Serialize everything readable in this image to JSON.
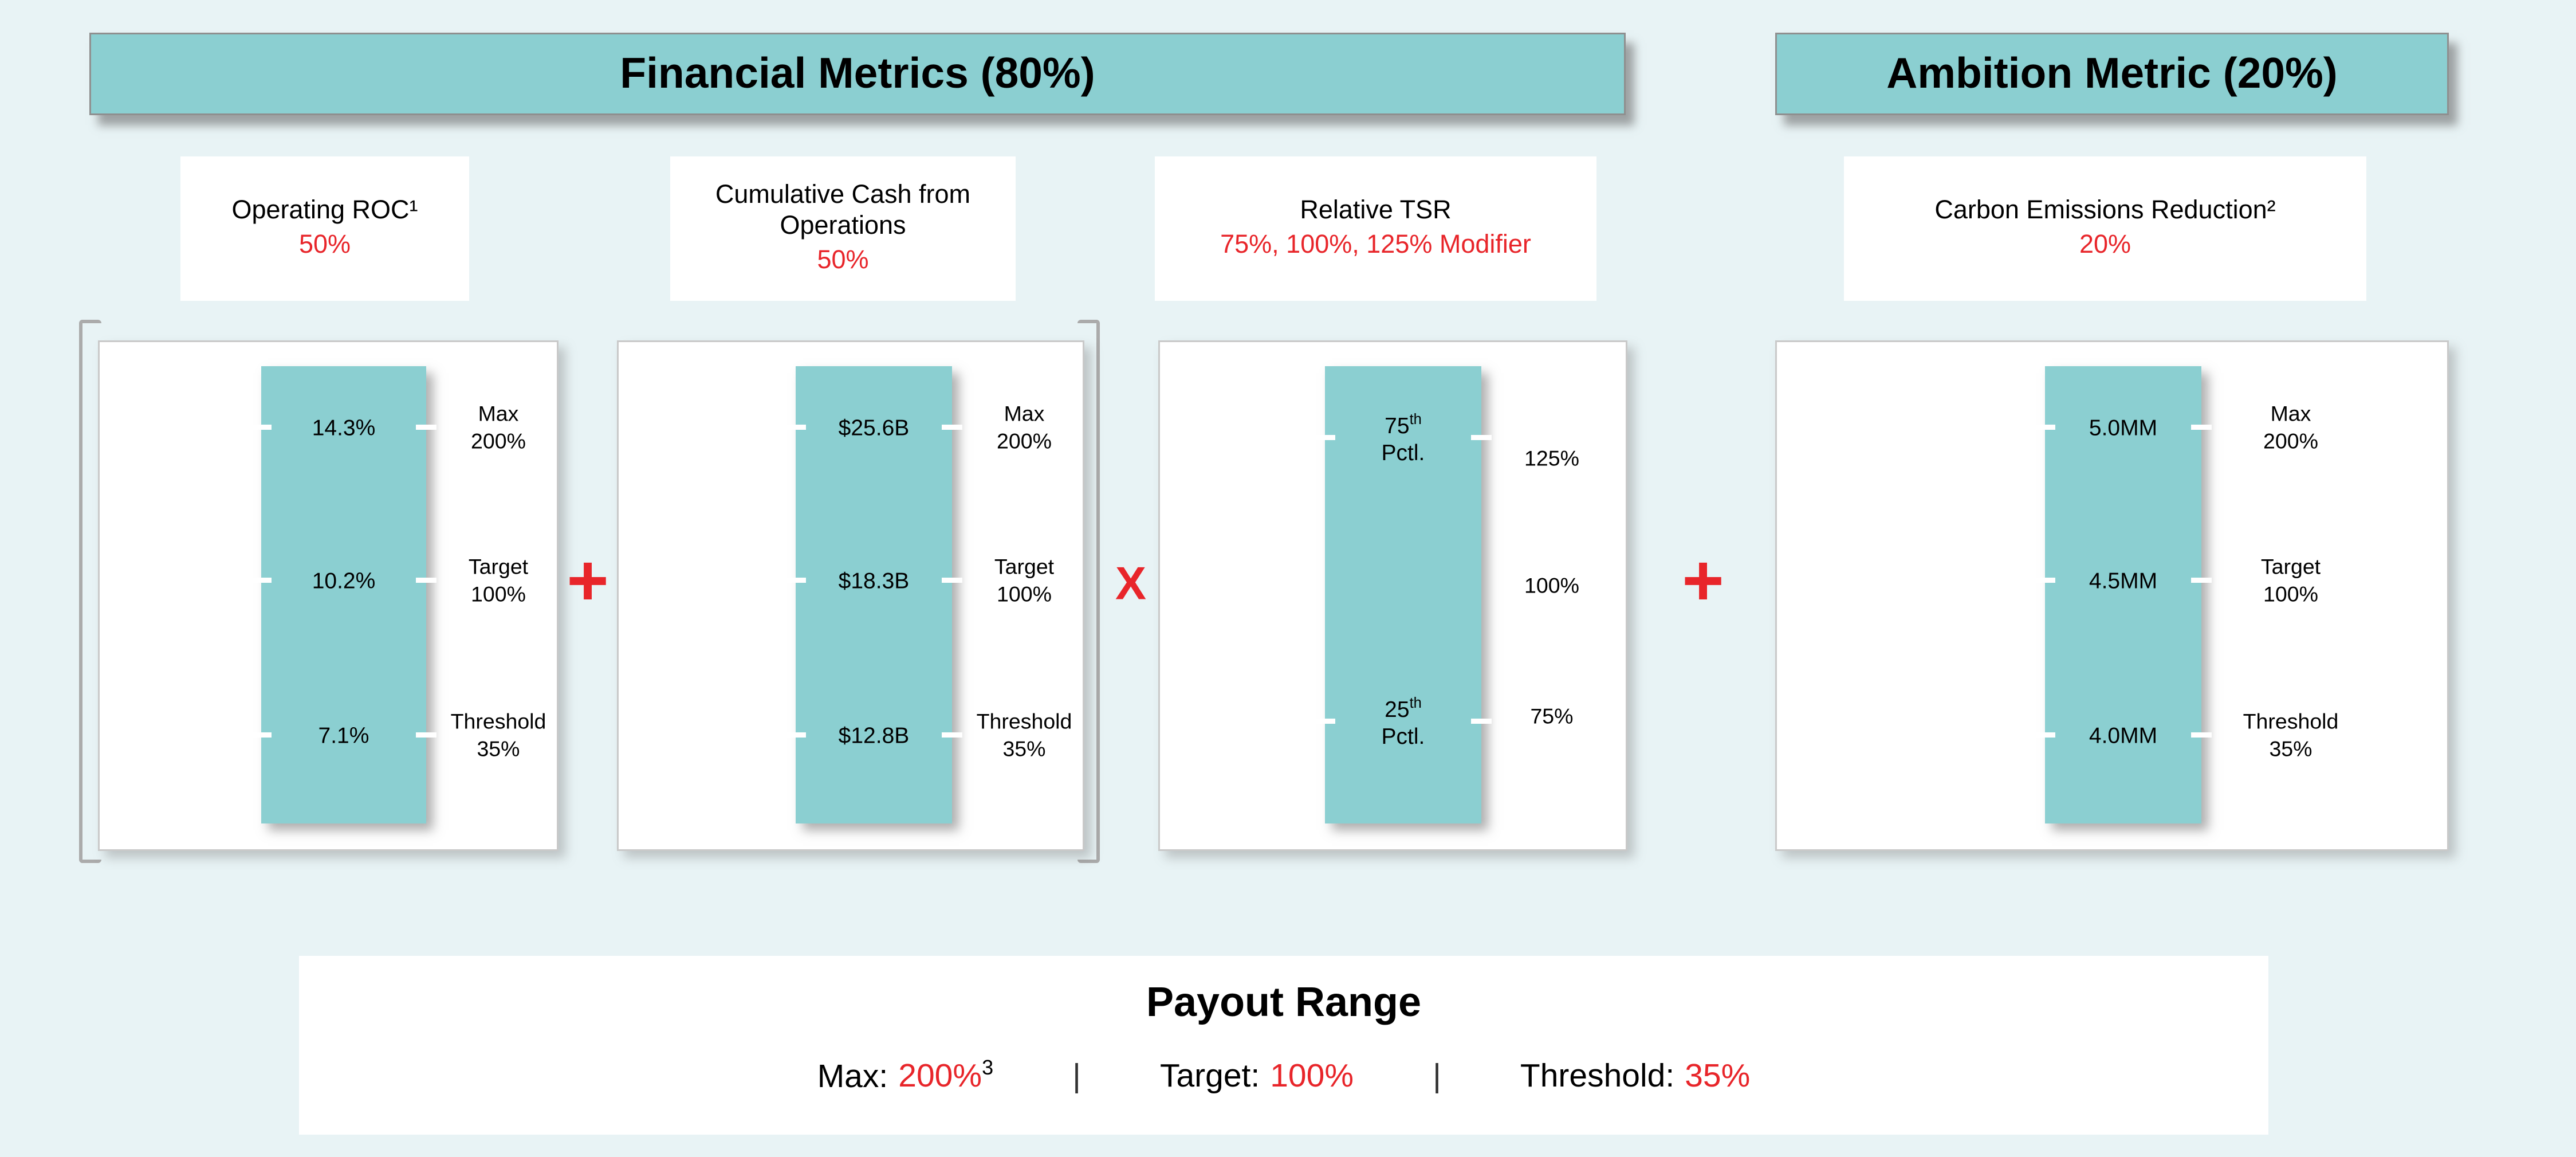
{
  "colors": {
    "background": "#e8f3f5",
    "teal": "#8bcfd1",
    "red": "#e8252a"
  },
  "headers": {
    "financial": "Financial Metrics (80%)",
    "ambition": "Ambition Metric (20%)"
  },
  "operators": {
    "plus_1": "+",
    "multiply": "X",
    "plus_2": "+"
  },
  "metrics": [
    {
      "title": "Operating ROC¹",
      "weight": "50%",
      "bar_values": [
        "14.3%",
        "10.2%",
        "7.1%"
      ],
      "scale_labels": [
        {
          "line1": "Max",
          "line2": "200%"
        },
        {
          "line1": "Target",
          "line2": "100%"
        },
        {
          "line1": "Threshold",
          "line2": "35%"
        }
      ]
    },
    {
      "title": "Cumulative Cash from Operations",
      "weight": "50%",
      "bar_values": [
        "$25.6B",
        "$18.3B",
        "$12.8B"
      ],
      "scale_labels": [
        {
          "line1": "Max",
          "line2": "200%"
        },
        {
          "line1": "Target",
          "line2": "100%"
        },
        {
          "line1": "Threshold",
          "line2": "35%"
        }
      ]
    },
    {
      "title": "Relative TSR",
      "weight": "75%, 100%, 125% Modifier",
      "bar_values": [
        {
          "num": "75",
          "sup": "th",
          "label": "Pctl."
        },
        {
          "num": "25",
          "sup": "th",
          "label": "Pctl."
        }
      ],
      "scale_labels": [
        "125%",
        "100%",
        "75%"
      ]
    },
    {
      "title": "Carbon Emissions Reduction²",
      "weight": "20%",
      "bar_values": [
        "5.0MM",
        "4.5MM",
        "4.0MM"
      ],
      "scale_labels": [
        {
          "line1": "Max",
          "line2": "200%"
        },
        {
          "line1": "Target",
          "line2": "100%"
        },
        {
          "line1": "Threshold",
          "line2": "35%"
        }
      ]
    }
  ],
  "payout": {
    "title": "Payout Range",
    "separator": "|",
    "items": [
      {
        "label": "Max:",
        "value": "200%",
        "footnote": "3"
      },
      {
        "label": "Target:",
        "value": "100%",
        "footnote": ""
      },
      {
        "label": "Threshold:",
        "value": "35%",
        "footnote": ""
      }
    ]
  }
}
